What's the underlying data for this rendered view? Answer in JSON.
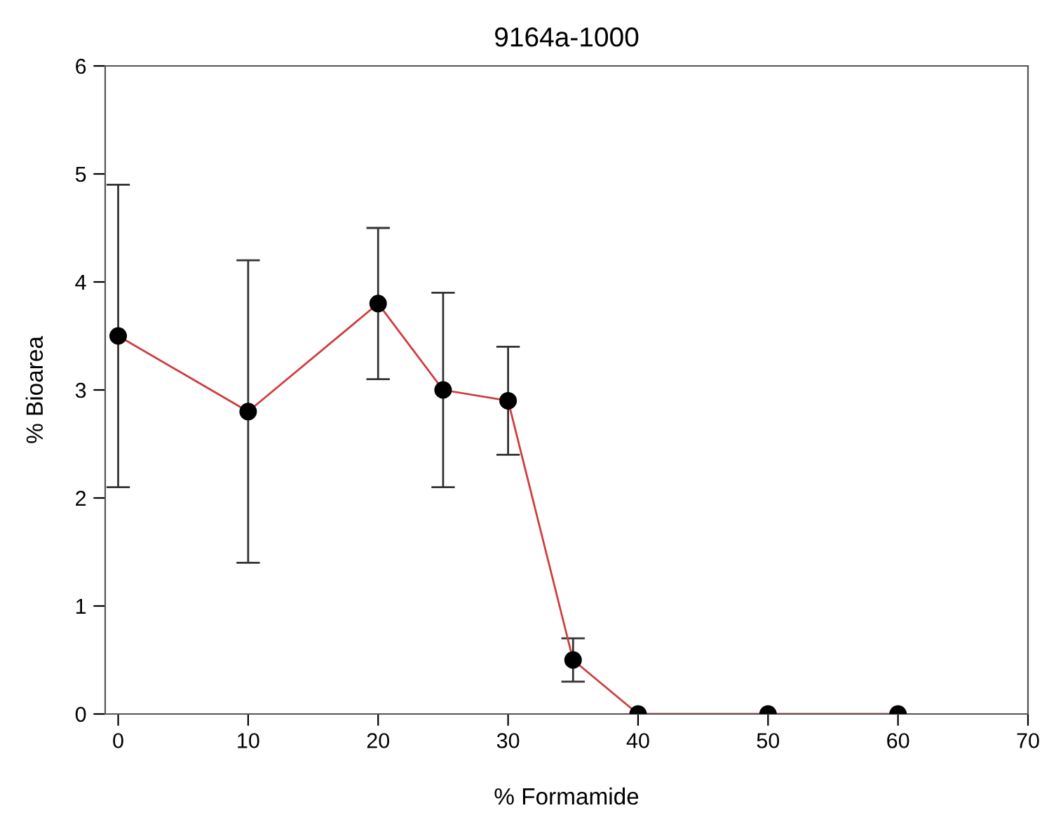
{
  "chart_data": {
    "type": "line",
    "title": "9164a-1000",
    "xlabel": "% Formamide",
    "ylabel": "% Bioarea",
    "x": [
      0,
      10,
      20,
      25,
      30,
      35,
      40,
      50,
      60
    ],
    "series": [
      {
        "color": "#d03c3c",
        "values": [
          3.5,
          2.8,
          3.8,
          3.0,
          2.9,
          0.5,
          0,
          0,
          0
        ],
        "errors": [
          1.4,
          1.4,
          0.7,
          0.9,
          0.5,
          0.2,
          null,
          null,
          null
        ]
      }
    ],
    "marker": "circle",
    "line_style": "solid",
    "grid": false,
    "legend": false,
    "xlim": [
      -1,
      70
    ],
    "xticks": [
      0,
      10,
      20,
      30,
      40,
      50,
      60,
      70
    ],
    "ylim": [
      0,
      6
    ],
    "yticks": [
      0,
      1,
      2,
      3,
      4,
      5,
      6
    ]
  }
}
